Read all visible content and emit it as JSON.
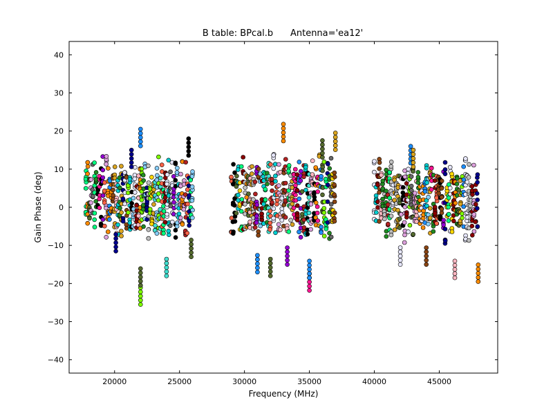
{
  "chart_data": {
    "type": "scatter",
    "title": "B table: BPcal.b      Antenna='ea12'",
    "xlabel": "Frequency (MHz)",
    "ylabel": "Gain Phase (deg)",
    "xlim": [
      16500,
      49500
    ],
    "ylim": [
      -43.5,
      43.5
    ],
    "xticks": [
      20000,
      25000,
      30000,
      35000,
      40000,
      45000
    ],
    "yticks": [
      -40,
      -30,
      -20,
      -10,
      0,
      10,
      20,
      30,
      40
    ],
    "grid": false,
    "legend": "none",
    "marker": "circle",
    "colors": [
      "#000000",
      "#00008b",
      "#228b22",
      "#ff6347",
      "#40e0d0",
      "#ff1493",
      "#ffd700",
      "#8b4513",
      "#9400d3",
      "#7fff00",
      "#87cefa",
      "#ff8c00",
      "#b22222",
      "#e6e6fa",
      "#696969",
      "#00ff7f",
      "#daa520",
      "#ffb6c1",
      "#556b2f",
      "#1e90ff",
      "#c0c0c0",
      "#8b0000",
      "#dda0dd",
      "#00ced1"
    ],
    "bands": [
      {
        "x_range": [
          17800,
          26000
        ],
        "y_range": [
          -9,
          14
        ],
        "outliers": [
          [
            22000,
            20.5
          ],
          [
            22000,
            -25.5
          ],
          [
            22000,
            -20.5
          ],
          [
            24000,
            -18
          ],
          [
            21300,
            15
          ],
          [
            20100,
            -11.5
          ],
          [
            25700,
            18
          ],
          [
            25900,
            -13
          ]
        ]
      },
      {
        "x_range": [
          29000,
          37000
        ],
        "y_range": [
          -10,
          15
        ],
        "outliers": [
          [
            33000,
            21.8
          ],
          [
            35000,
            -21.8
          ],
          [
            35000,
            -18.5
          ],
          [
            36000,
            17.5
          ],
          [
            37000,
            19.5
          ],
          [
            31000,
            -17
          ],
          [
            32000,
            -18
          ],
          [
            33300,
            -15
          ]
        ]
      },
      {
        "x_range": [
          40000,
          48000
        ],
        "y_range": [
          -10,
          13
        ],
        "outliers": [
          [
            42800,
            16
          ],
          [
            46200,
            -18.5
          ],
          [
            48000,
            -19.5
          ],
          [
            43000,
            15
          ],
          [
            44000,
            -15
          ],
          [
            42000,
            -15
          ]
        ]
      }
    ]
  }
}
